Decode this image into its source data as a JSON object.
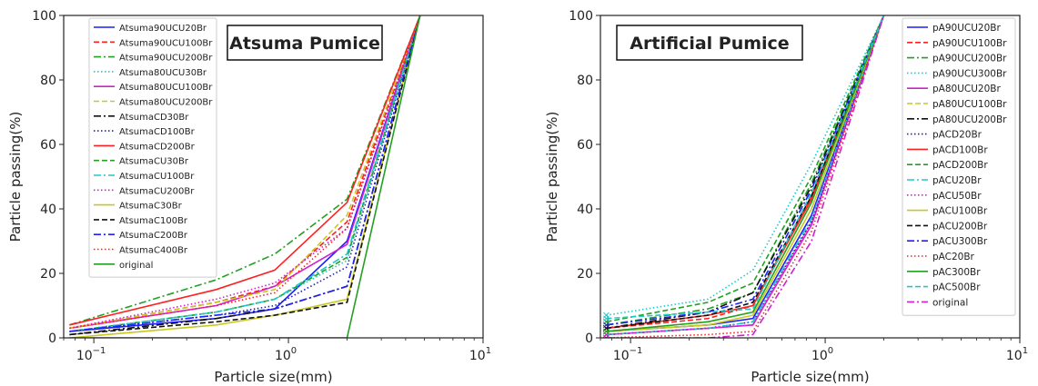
{
  "chart_data": [
    {
      "type": "line",
      "title": "Atsuma Pumice",
      "xlabel": "Particle size(mm)",
      "ylabel": "Particle passing(%)",
      "xscale": "log",
      "xlim": [
        0.07,
        10
      ],
      "ylim": [
        0,
        100
      ],
      "yticks": [
        "0",
        "20",
        "40",
        "60",
        "80",
        "100"
      ],
      "xticks": [
        {
          "value": 0.1,
          "base": "10",
          "exp": "−1"
        },
        {
          "value": 1,
          "base": "10",
          "exp": "0"
        },
        {
          "value": 10,
          "base": "10",
          "exp": "1"
        }
      ],
      "legend_position": "top-left",
      "x": [
        0.075,
        0.425,
        0.85,
        2,
        4.75
      ],
      "series": [
        {
          "name": "Atsuma90UCU20Br",
          "color": "#1f1fff",
          "dash": "solid",
          "values": [
            2,
            6,
            9,
            30,
            100
          ]
        },
        {
          "name": "Atsuma90UCU100Br",
          "color": "#ff2020",
          "dash": "dashed",
          "values": [
            3,
            11,
            16,
            36,
            100
          ]
        },
        {
          "name": "Atsuma90UCU200Br",
          "color": "#22a022",
          "dash": "dashdot",
          "values": [
            4,
            18,
            26,
            43,
            100
          ]
        },
        {
          "name": "Atsuma80UCU30Br",
          "color": "#20c8c8",
          "dash": "dotted",
          "values": [
            2,
            8,
            12,
            24,
            100
          ]
        },
        {
          "name": "Atsuma80UCU100Br",
          "color": "#d020d0",
          "dash": "solid",
          "values": [
            3,
            10,
            16,
            29,
            100
          ]
        },
        {
          "name": "Atsuma80UCU200Br",
          "color": "#c8c820",
          "dash": "dashed",
          "values": [
            3,
            11,
            15,
            38,
            100
          ]
        },
        {
          "name": "AtsumaCD30Br",
          "color": "#111111",
          "dash": "dashdot",
          "values": [
            1,
            6,
            9,
            16,
            100
          ]
        },
        {
          "name": "AtsumaCD100Br",
          "color": "#2020c0",
          "dash": "dotted",
          "values": [
            2,
            7,
            10,
            22,
            100
          ]
        },
        {
          "name": "AtsumaCD200Br",
          "color": "#ff2020",
          "dash": "solid",
          "values": [
            4,
            15,
            21,
            42,
            100
          ]
        },
        {
          "name": "AtsumaCU30Br",
          "color": "#22a022",
          "dash": "dashed",
          "values": [
            2,
            8,
            12,
            25,
            100
          ]
        },
        {
          "name": "AtsumaCU100Br",
          "color": "#20c8c8",
          "dash": "dashdot",
          "values": [
            2,
            8,
            12,
            26,
            100
          ]
        },
        {
          "name": "AtsumaCU200Br",
          "color": "#d020d0",
          "dash": "dotted",
          "values": [
            3,
            12,
            17,
            34,
            100
          ]
        },
        {
          "name": "AtsumaC30Br",
          "color": "#c8c820",
          "dash": "solid",
          "values": [
            0,
            4,
            7,
            12,
            100
          ]
        },
        {
          "name": "AtsumaC100Br",
          "color": "#111111",
          "dash": "dashed",
          "values": [
            1,
            5,
            7,
            11,
            100
          ]
        },
        {
          "name": "AtsumaC200Br",
          "color": "#1f1fff",
          "dash": "dashdot",
          "values": [
            2,
            7,
            9,
            16,
            100
          ]
        },
        {
          "name": "AtsumaC400Br",
          "color": "#ff2020",
          "dash": "dotted",
          "values": [
            3,
            10,
            14,
            34,
            100
          ]
        },
        {
          "name": "original",
          "color": "#22a022",
          "dash": "solid",
          "values": [
            0,
            0,
            0,
            0,
            100
          ]
        }
      ]
    },
    {
      "type": "line",
      "title": "Artificial Pumice",
      "xlabel": "Particle size(mm)",
      "ylabel": "Particle passing(%)",
      "xscale": "log",
      "xlim": [
        0.07,
        10
      ],
      "ylim": [
        0,
        100
      ],
      "yticks": [
        "0",
        "20",
        "40",
        "60",
        "80",
        "100"
      ],
      "xticks": [
        {
          "value": 0.1,
          "base": "10",
          "exp": "−1"
        },
        {
          "value": 1,
          "base": "10",
          "exp": "0"
        },
        {
          "value": 10,
          "base": "10",
          "exp": "1"
        }
      ],
      "legend_position": "top-right",
      "x": [
        0.075,
        0.25,
        0.425,
        0.85,
        2
      ],
      "series": [
        {
          "name": "pA90UCU20Br",
          "color": "#1f1fff",
          "dash": "solid",
          "values": [
            2,
            4,
            6,
            38,
            100
          ]
        },
        {
          "name": "pA90UCU100Br",
          "color": "#ff2020",
          "dash": "dashed",
          "values": [
            3,
            6,
            10,
            44,
            100
          ]
        },
        {
          "name": "pA90UCU200Br",
          "color": "#22a022",
          "dash": "dashdot",
          "values": [
            4,
            9,
            14,
            48,
            100
          ]
        },
        {
          "name": "pA90UCU300Br",
          "color": "#20c8c8",
          "dash": "dotted",
          "values": [
            7,
            12,
            21,
            54,
            100
          ]
        },
        {
          "name": "pA80UCU20Br",
          "color": "#d020d0",
          "dash": "solid",
          "values": [
            1,
            3,
            4,
            35,
            100
          ]
        },
        {
          "name": "pA80UCU100Br",
          "color": "#c8c820",
          "dash": "dashed",
          "values": [
            2,
            5,
            8,
            42,
            100
          ]
        },
        {
          "name": "pA80UCU200Br",
          "color": "#111111",
          "dash": "dashdot",
          "values": [
            3,
            8,
            14,
            47,
            100
          ]
        },
        {
          "name": "pACD20Br",
          "color": "#2020c0",
          "dash": "dotted",
          "values": [
            1,
            3,
            5,
            36,
            100
          ]
        },
        {
          "name": "pACD100Br",
          "color": "#ff2020",
          "dash": "solid",
          "values": [
            3,
            7,
            10,
            43,
            100
          ]
        },
        {
          "name": "pACD200Br",
          "color": "#22a022",
          "dash": "dashed",
          "values": [
            5,
            11,
            17,
            50,
            100
          ]
        },
        {
          "name": "pACU20Br",
          "color": "#20c8c8",
          "dash": "dashdot",
          "values": [
            1,
            3,
            5,
            37,
            100
          ]
        },
        {
          "name": "pACU50Br",
          "color": "#d020d0",
          "dash": "dotted",
          "values": [
            1,
            3,
            4,
            36,
            100
          ]
        },
        {
          "name": "pACU100Br",
          "color": "#c8c820",
          "dash": "solid",
          "values": [
            2,
            4,
            7,
            40,
            100
          ]
        },
        {
          "name": "pACU200Br",
          "color": "#111111",
          "dash": "dashed",
          "values": [
            3,
            7,
            11,
            44,
            100
          ]
        },
        {
          "name": "pACU300Br",
          "color": "#1f1fff",
          "dash": "dashdot",
          "values": [
            4,
            8,
            12,
            46,
            100
          ]
        },
        {
          "name": "pAC20Br",
          "color": "#ff2020",
          "dash": "dotted",
          "values": [
            0,
            1,
            2,
            33,
            100
          ]
        },
        {
          "name": "pAC300Br",
          "color": "#22a022",
          "dash": "solid",
          "values": [
            2,
            5,
            8,
            42,
            100
          ]
        },
        {
          "name": "pAC500Br",
          "color": "#20c8c8",
          "dash": "dashed",
          "values": [
            6,
            8,
            9,
            45,
            100
          ]
        },
        {
          "name": "original",
          "color": "#d020d0",
          "dash": "dashdot",
          "values": [
            0,
            0,
            1,
            30,
            100
          ]
        }
      ]
    }
  ]
}
